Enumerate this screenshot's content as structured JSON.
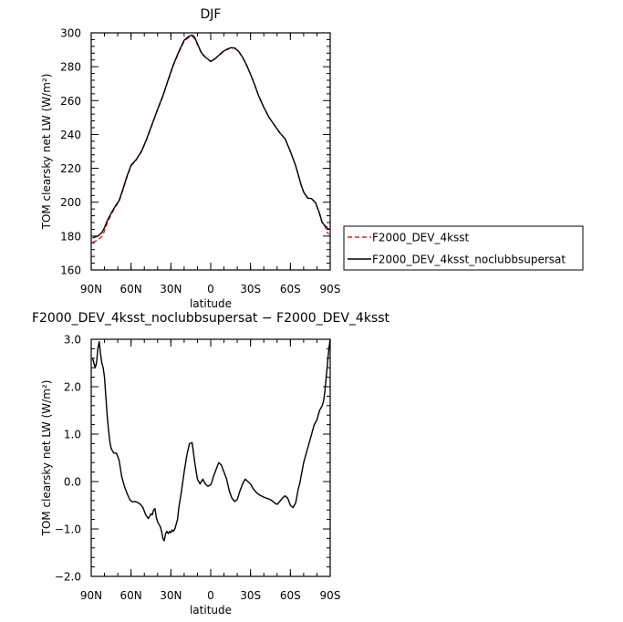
{
  "chart_data": [
    {
      "type": "line",
      "title": "DJF",
      "xlabel": "latitude",
      "ylabel": "TOM clearsky net LW (W/m²)",
      "xlim": [
        90,
        -90
      ],
      "ylim": [
        160,
        300
      ],
      "x_tick_values": [
        90,
        60,
        30,
        0,
        -30,
        -60,
        -90
      ],
      "x_tick_labels": [
        "90N",
        "60N",
        "30N",
        "0",
        "30S",
        "60S",
        "90S"
      ],
      "y_tick_values": [
        160,
        180,
        200,
        220,
        240,
        260,
        280,
        300
      ],
      "y_tick_labels": [
        "160",
        "180",
        "200",
        "220",
        "240",
        "260",
        "280",
        "300"
      ],
      "legend_position": "right",
      "series": [
        {
          "name": "F2000_DEV_4ksst",
          "color": "#e8181c",
          "dash": "dashed",
          "x": [
            89,
            85,
            82,
            80,
            78,
            75,
            72,
            69,
            66,
            63,
            60,
            56,
            52,
            48,
            44,
            40,
            36,
            32,
            28,
            24,
            20,
            17,
            14,
            12,
            10,
            7,
            4,
            0,
            -3,
            -6,
            -9,
            -12,
            -15,
            -18,
            -21,
            -24,
            -27,
            -30,
            -33,
            -36,
            -40,
            -44,
            -48,
            -52,
            -56,
            -60,
            -64,
            -66,
            -68,
            -70,
            -73,
            -76,
            -79,
            -82,
            -84,
            -86,
            -88,
            -89
          ],
          "y": [
            176.3,
            177.6,
            179.7,
            182.9,
            187.5,
            192.6,
            197.0,
            200.5,
            207.5,
            215.0,
            221.5,
            225.0,
            230.0,
            237.5,
            246.0,
            254.5,
            262.5,
            272.0,
            281.0,
            288.5,
            295.0,
            297.0,
            298.0,
            296.5,
            293.0,
            288.0,
            285.5,
            283.0,
            284.5,
            286.5,
            288.5,
            290.0,
            291.0,
            291.0,
            289.0,
            285.5,
            281.0,
            275.5,
            269.5,
            263.0,
            256.0,
            250.0,
            245.5,
            241.0,
            237.5,
            230.0,
            221.5,
            216.0,
            210.5,
            206.0,
            202.5,
            202.0,
            199.5,
            193.0,
            187.5,
            185.8,
            182.0,
            181.0
          ]
        },
        {
          "name": "F2000_DEV_4ksst_noclubbsupersat",
          "color": "#000000",
          "dash": "solid",
          "x": [
            89,
            85,
            82,
            80,
            78,
            75,
            72,
            69,
            66,
            63,
            60,
            56,
            52,
            48,
            44,
            40,
            36,
            32,
            28,
            24,
            20,
            17,
            14,
            12,
            10,
            7,
            4,
            0,
            -3,
            -6,
            -9,
            -12,
            -15,
            -18,
            -21,
            -24,
            -27,
            -30,
            -33,
            -36,
            -40,
            -44,
            -48,
            -52,
            -56,
            -60,
            -64,
            -66,
            -68,
            -70,
            -73,
            -76,
            -79,
            -82,
            -84,
            -86,
            -88,
            -89
          ],
          "y": [
            178.9,
            180.0,
            182.0,
            185.0,
            189.0,
            193.5,
            197.5,
            201.0,
            208.0,
            215.5,
            221.8,
            225.3,
            230.3,
            237.8,
            246.4,
            254.9,
            262.9,
            272.4,
            281.4,
            289.0,
            295.6,
            297.7,
            298.7,
            297.3,
            293.5,
            288.3,
            285.6,
            283.1,
            284.6,
            286.6,
            288.8,
            290.2,
            291.2,
            291.1,
            289.1,
            285.6,
            281.0,
            275.5,
            269.6,
            263.0,
            256.0,
            250.0,
            245.5,
            241.0,
            237.5,
            230.0,
            221.5,
            216.0,
            210.5,
            206.0,
            202.5,
            202.1,
            199.7,
            193.3,
            188.0,
            186.2,
            184.7,
            184.0
          ]
        }
      ]
    },
    {
      "type": "line",
      "title": "F2000_DEV_4ksst_noclubbsupersat − F2000_DEV_4ksst",
      "xlabel": "latitude",
      "ylabel": "TOM clearsky net LW (W/m²)",
      "xlim": [
        90,
        -90
      ],
      "ylim": [
        -2.0,
        3.0
      ],
      "x_tick_values": [
        90,
        60,
        30,
        0,
        -30,
        -60,
        -90
      ],
      "x_tick_labels": [
        "90N",
        "60N",
        "30N",
        "0",
        "30S",
        "60S",
        "90S"
      ],
      "y_tick_values": [
        -2.0,
        -1.0,
        0.0,
        1.0,
        2.0,
        3.0
      ],
      "y_tick_labels": [
        "−2.0",
        "−1.0",
        "0.0",
        "1.0",
        "2.0",
        "3.0"
      ],
      "series": [
        {
          "name": "",
          "color": "#000000",
          "dash": "solid",
          "x": [
            89,
            88,
            87,
            86,
            85,
            84,
            83,
            82,
            81,
            80,
            79,
            78,
            77,
            76,
            75,
            73,
            71,
            69,
            67,
            65,
            63,
            61,
            59,
            57,
            55,
            53,
            51,
            49,
            47,
            45,
            44,
            43,
            42,
            41,
            40,
            39,
            38,
            37,
            36,
            35,
            34,
            33,
            32,
            31,
            30,
            29,
            28,
            27,
            26,
            25,
            24,
            22,
            20,
            18,
            16,
            14,
            12,
            10,
            8,
            6,
            5,
            4,
            3,
            2,
            1,
            0,
            -1,
            -2,
            -4,
            -6,
            -8,
            -10,
            -12,
            -14,
            -16,
            -18,
            -20,
            -22,
            -24,
            -26,
            -28,
            -30,
            -32,
            -34,
            -36,
            -38,
            -40,
            -42,
            -44,
            -46,
            -48,
            -50,
            -52,
            -54,
            -56,
            -58,
            -60,
            -62,
            -64,
            -65,
            -66,
            -67,
            -68,
            -69,
            -70,
            -72,
            -74,
            -76,
            -78,
            -80,
            -82,
            -84,
            -85,
            -86,
            -87,
            -88,
            -89,
            -90
          ],
          "y": [
            2.6,
            2.5,
            2.4,
            2.5,
            2.8,
            2.95,
            2.7,
            2.5,
            2.4,
            2.2,
            1.8,
            1.4,
            1.1,
            0.85,
            0.7,
            0.6,
            0.6,
            0.45,
            0.1,
            -0.1,
            -0.25,
            -0.38,
            -0.43,
            -0.42,
            -0.44,
            -0.48,
            -0.55,
            -0.7,
            -0.78,
            -0.68,
            -0.7,
            -0.6,
            -0.57,
            -0.75,
            -0.85,
            -0.9,
            -0.95,
            -1.05,
            -1.2,
            -1.25,
            -1.1,
            -1.05,
            -1.1,
            -1.05,
            -1.08,
            -1.02,
            -1.05,
            -1.0,
            -0.9,
            -0.8,
            -0.55,
            -0.2,
            0.2,
            0.55,
            0.8,
            0.82,
            0.4,
            0.05,
            -0.05,
            0.05,
            0.0,
            -0.05,
            -0.08,
            -0.1,
            -0.08,
            -0.07,
            0.0,
            0.1,
            0.25,
            0.4,
            0.35,
            0.2,
            0.05,
            -0.2,
            -0.35,
            -0.42,
            -0.38,
            -0.2,
            -0.05,
            0.05,
            0.0,
            -0.05,
            -0.15,
            -0.22,
            -0.27,
            -0.3,
            -0.33,
            -0.35,
            -0.37,
            -0.4,
            -0.45,
            -0.48,
            -0.42,
            -0.35,
            -0.3,
            -0.35,
            -0.5,
            -0.55,
            -0.45,
            -0.3,
            -0.15,
            -0.05,
            0.1,
            0.25,
            0.4,
            0.6,
            0.8,
            1.0,
            1.2,
            1.3,
            1.5,
            1.6,
            1.7,
            1.9,
            2.2,
            2.5,
            2.8,
            3.0
          ]
        }
      ]
    }
  ]
}
